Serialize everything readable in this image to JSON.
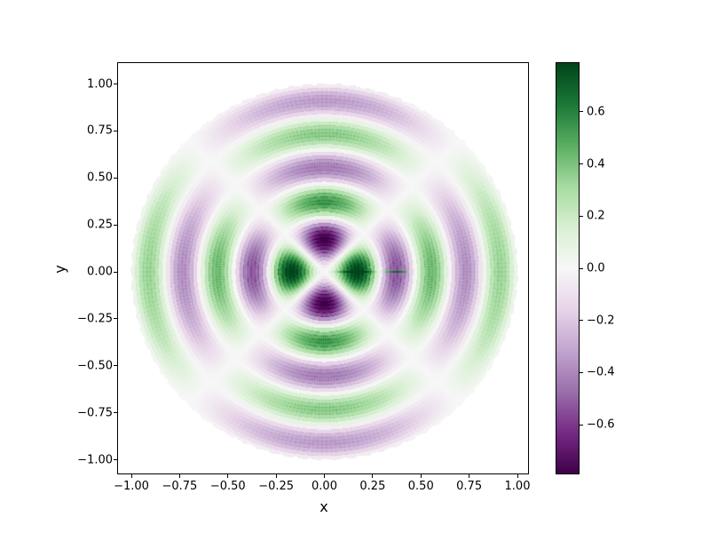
{
  "figure": {
    "background": "#ffffff"
  },
  "chart_data": {
    "type": "heatmap",
    "title": "",
    "xlabel": "x",
    "ylabel": "y",
    "grid": false,
    "xlim": [
      -1.07,
      1.06
    ],
    "ylim": [
      -1.07,
      1.11
    ],
    "x_ticks": [
      {
        "value": -1.0,
        "label": "−1.00"
      },
      {
        "value": -0.75,
        "label": "−0.75"
      },
      {
        "value": -0.5,
        "label": "−0.50"
      },
      {
        "value": -0.25,
        "label": "−0.25"
      },
      {
        "value": 0.0,
        "label": "0.00"
      },
      {
        "value": 0.25,
        "label": "0.25"
      },
      {
        "value": 0.5,
        "label": "0.50"
      },
      {
        "value": 0.75,
        "label": "0.75"
      },
      {
        "value": 1.0,
        "label": "1.00"
      }
    ],
    "y_ticks": [
      {
        "value": 1.0,
        "label": "1.00"
      },
      {
        "value": 0.75,
        "label": "0.75"
      },
      {
        "value": 0.5,
        "label": "0.50"
      },
      {
        "value": 0.25,
        "label": "0.25"
      },
      {
        "value": 0.0,
        "label": "0.00"
      },
      {
        "value": -0.25,
        "label": "−0.25"
      },
      {
        "value": -0.5,
        "label": "−0.50"
      },
      {
        "value": -0.75,
        "label": "−0.75"
      },
      {
        "value": -1.0,
        "label": "−1.00"
      }
    ],
    "colormap": {
      "name": "PRGn",
      "anchors": [
        "#40004b",
        "#762a83",
        "#9970ab",
        "#c2a5cf",
        "#e7d4e8",
        "#f7f7f7",
        "#d9f0d3",
        "#a6dba0",
        "#5aae61",
        "#1b7837",
        "#00441b"
      ]
    },
    "value_range": [
      -0.7866,
      0.7866
    ],
    "colorbar": {
      "ticks": [
        {
          "value": 0.6,
          "label": "0.6"
        },
        {
          "value": 0.4,
          "label": "0.4"
        },
        {
          "value": 0.2,
          "label": "0.2"
        },
        {
          "value": 0.0,
          "label": "0.0"
        },
        {
          "value": -0.2,
          "label": "−0.2"
        },
        {
          "value": -0.4,
          "label": "−0.4"
        },
        {
          "value": -0.6,
          "label": "−0.6"
        }
      ]
    },
    "field": {
      "description": "Drum-head normal mode on the unit disc rendered as a polar pcolormesh: f(r,theta) = A * J2(k*r) * cos(2*theta) for r <= 1, white outside the disc. Four angular lobes (green on the x-axis, purple on the y-axis near the centre) with 5 radial antinodes of decaying amplitude; zeros near r = 0.29, 0.47, 0.65, 0.82, 1.0.",
      "bessel_order": 2,
      "k": 17.96,
      "amplitude": 1.617,
      "angular_lobes": 4,
      "radial_antinodes": 5,
      "domain": "unit disc, r in [0,1], theta in [0, 2*pi]",
      "mesh": {
        "n_r": 50,
        "n_theta": 250
      }
    }
  }
}
